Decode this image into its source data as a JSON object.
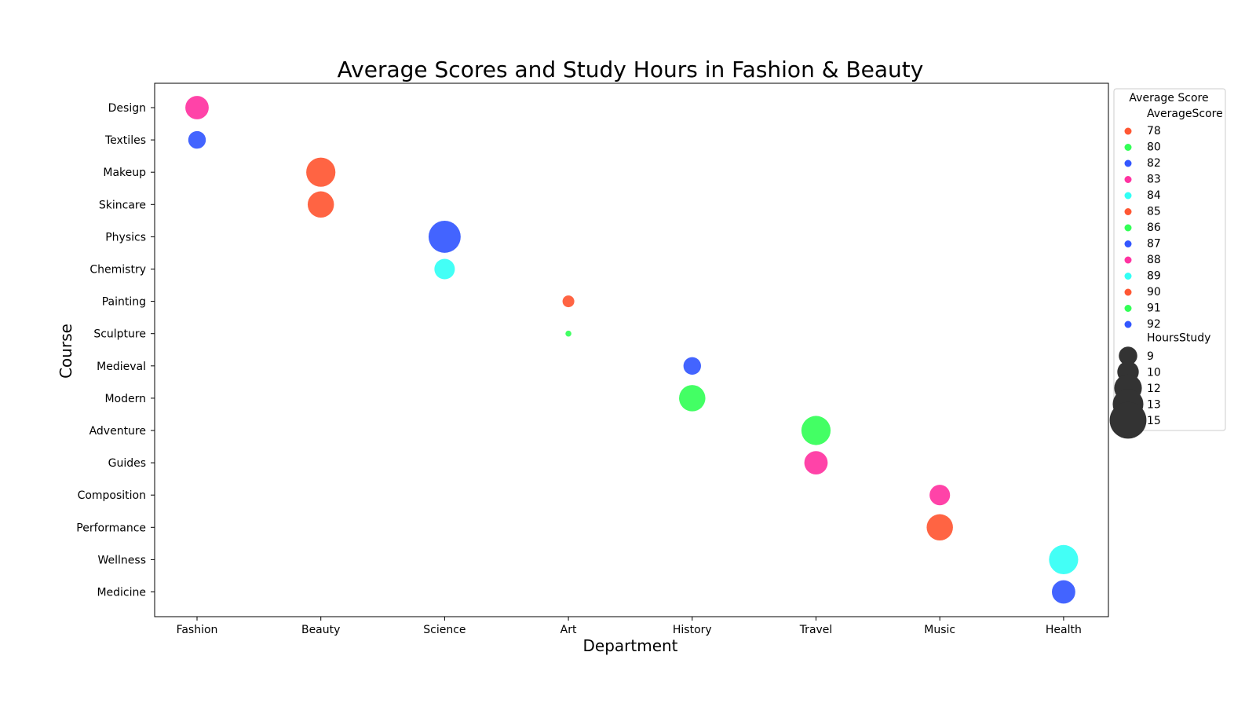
{
  "chart_data": {
    "type": "scatter",
    "title": "Average Scores and Study Hours in Fashion & Beauty",
    "xlabel": "Department",
    "ylabel": "Course",
    "x_categories": [
      "Fashion",
      "Beauty",
      "Science",
      "Art",
      "History",
      "Travel",
      "Music",
      "Health"
    ],
    "y_categories": [
      "Design",
      "Textiles",
      "Makeup",
      "Skincare",
      "Physics",
      "Chemistry",
      "Painting",
      "Sculpture",
      "Medieval",
      "Modern",
      "Adventure",
      "Guides",
      "Composition",
      "Performance",
      "Wellness",
      "Medicine"
    ],
    "points": [
      {
        "department": "Fashion",
        "course": "Design",
        "average_score": 88,
        "hours_study": 11
      },
      {
        "department": "Fashion",
        "course": "Textiles",
        "average_score": 82,
        "hours_study": 9
      },
      {
        "department": "Beauty",
        "course": "Makeup",
        "average_score": 90,
        "hours_study": 13
      },
      {
        "department": "Beauty",
        "course": "Skincare",
        "average_score": 85,
        "hours_study": 12
      },
      {
        "department": "Science",
        "course": "Physics",
        "average_score": 92,
        "hours_study": 14
      },
      {
        "department": "Science",
        "course": "Chemistry",
        "average_score": 89,
        "hours_study": 10
      },
      {
        "department": "Art",
        "course": "Painting",
        "average_score": 78,
        "hours_study": 7
      },
      {
        "department": "Art",
        "course": "Sculpture",
        "average_score": 80,
        "hours_study": 5
      },
      {
        "department": "History",
        "course": "Medieval",
        "average_score": 87,
        "hours_study": 9
      },
      {
        "department": "History",
        "course": "Modern",
        "average_score": 91,
        "hours_study": 12
      },
      {
        "department": "Travel",
        "course": "Adventure",
        "average_score": 86,
        "hours_study": 13
      },
      {
        "department": "Travel",
        "course": "Guides",
        "average_score": 83,
        "hours_study": 11
      },
      {
        "department": "Music",
        "course": "Composition",
        "average_score": 83,
        "hours_study": 10
      },
      {
        "department": "Music",
        "course": "Performance",
        "average_score": 85,
        "hours_study": 12
      },
      {
        "department": "Health",
        "course": "Wellness",
        "average_score": 84,
        "hours_study": 13
      },
      {
        "department": "Health",
        "course": "Medicine",
        "average_score": 87,
        "hours_study": 11
      }
    ],
    "legend": {
      "title": "Average Score",
      "hue_title": "AverageScore",
      "hue_entries": [
        {
          "label": "78",
          "color": "#ff5733"
        },
        {
          "label": "80",
          "color": "#33ff57"
        },
        {
          "label": "82",
          "color": "#3357ff"
        },
        {
          "label": "83",
          "color": "#ff33a1"
        },
        {
          "label": "84",
          "color": "#33fff5"
        },
        {
          "label": "85",
          "color": "#ff5733"
        },
        {
          "label": "86",
          "color": "#33ff57"
        },
        {
          "label": "87",
          "color": "#3357ff"
        },
        {
          "label": "88",
          "color": "#ff33a1"
        },
        {
          "label": "89",
          "color": "#33fff5"
        },
        {
          "label": "90",
          "color": "#ff5733"
        },
        {
          "label": "91",
          "color": "#33ff57"
        },
        {
          "label": "92",
          "color": "#3357ff"
        }
      ],
      "size_title": "HoursStudy",
      "size_entries": [
        {
          "label": "9",
          "value": 9
        },
        {
          "label": "10",
          "value": 10
        },
        {
          "label": "12",
          "value": 12
        },
        {
          "label": "13",
          "value": 13
        },
        {
          "label": "15",
          "value": 15
        }
      ],
      "size_marker_color": "#333333",
      "placement": "outside-right-top"
    },
    "grid": false
  }
}
